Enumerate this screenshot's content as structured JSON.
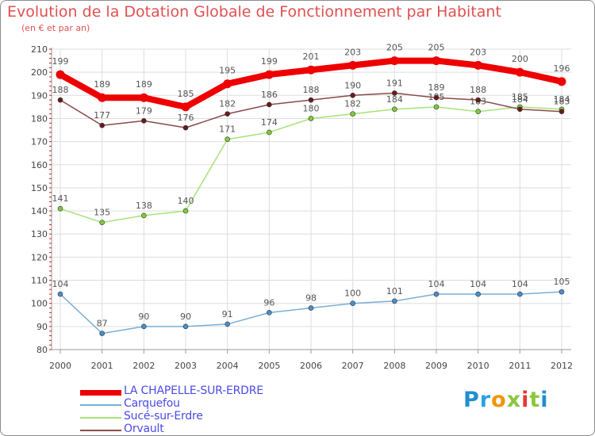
{
  "header": {
    "title": "Evolution de la Dotation Globale de Fonctionnement par Habitant",
    "subtitle": "(en € et par an)"
  },
  "logo": {
    "letters": [
      "P",
      "r",
      "o",
      "x",
      "i",
      "t",
      "i"
    ],
    "colors": [
      "#1f8fcf",
      "#2aa3e0",
      "#f29500",
      "#8cc63e",
      "#e23a3a",
      "#8cc63e",
      "#1f8fcf"
    ]
  },
  "chart_data": {
    "type": "line",
    "title": "Evolution de la Dotation Globale de Fonctionnement par Habitant",
    "subtitle": "(en € et par an)",
    "xlabel": "",
    "ylabel": "",
    "x": [
      "2000",
      "2001",
      "2002",
      "2003",
      "2004",
      "2005",
      "2006",
      "2007",
      "2008",
      "2009",
      "2010",
      "2011",
      "2012"
    ],
    "ylim": [
      80,
      210
    ],
    "yticks": [
      80,
      90,
      100,
      110,
      120,
      130,
      140,
      150,
      160,
      170,
      180,
      190,
      200,
      210
    ],
    "grid": true,
    "legend_position": "bottom-left",
    "series": [
      {
        "name": "LA CHAPELLE-SUR-ERDRE",
        "values": [
          199,
          189,
          189,
          185,
          195,
          199,
          201,
          203,
          205,
          205,
          203,
          200,
          196
        ],
        "color": "#ee0000",
        "marker": "#ee0000"
      },
      {
        "name": "Carquefou",
        "values": [
          104,
          87,
          90,
          90,
          91,
          96,
          98,
          100,
          101,
          104,
          104,
          104,
          105
        ],
        "color": "#7aaed6",
        "marker": "#4a8fcc"
      },
      {
        "name": "Sucé-sur-Erdre",
        "values": [
          141,
          135,
          138,
          140,
          171,
          174,
          180,
          182,
          184,
          185,
          183,
          185,
          184
        ],
        "color": "#a8e27a",
        "marker": "#7fcc3a"
      },
      {
        "name": "Orvault",
        "values": [
          188,
          177,
          179,
          176,
          182,
          186,
          188,
          190,
          191,
          189,
          188,
          184,
          183
        ],
        "color": "#8a4a4a",
        "marker": "#6a1a1a"
      }
    ]
  }
}
